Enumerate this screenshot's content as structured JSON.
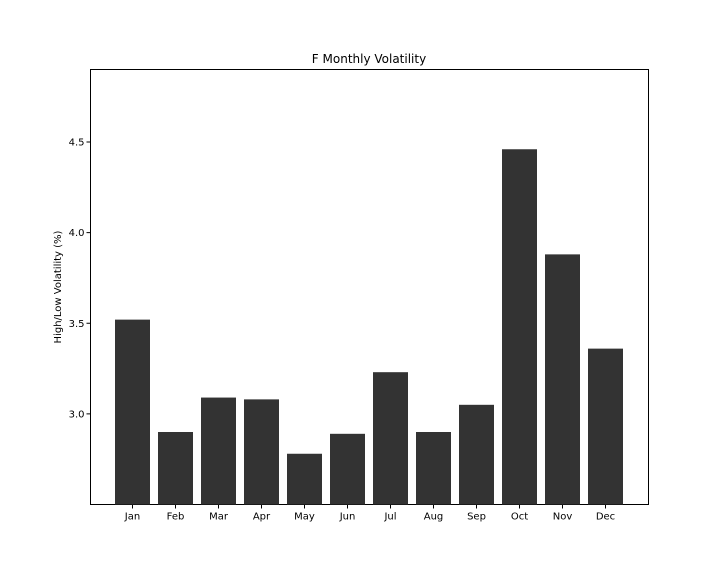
{
  "chart_data": {
    "type": "bar",
    "title": "F Monthly Volatility",
    "xlabel": "",
    "ylabel": "High/Low Volatility (%)",
    "categories": [
      "Jan",
      "Feb",
      "Mar",
      "Apr",
      "May",
      "Jun",
      "Jul",
      "Aug",
      "Sep",
      "Oct",
      "Nov",
      "Dec"
    ],
    "values": [
      3.52,
      2.9,
      3.09,
      3.08,
      2.78,
      2.89,
      3.23,
      2.9,
      3.05,
      4.46,
      3.88,
      3.36
    ],
    "ylim": [
      2.5,
      4.9
    ],
    "yticks": [
      3.0,
      3.5,
      4.0,
      4.5
    ],
    "ytick_labels": [
      "3.0",
      "3.5",
      "4.0",
      "4.5"
    ],
    "bar_color": "#333333",
    "grid": false,
    "legend": "none"
  }
}
